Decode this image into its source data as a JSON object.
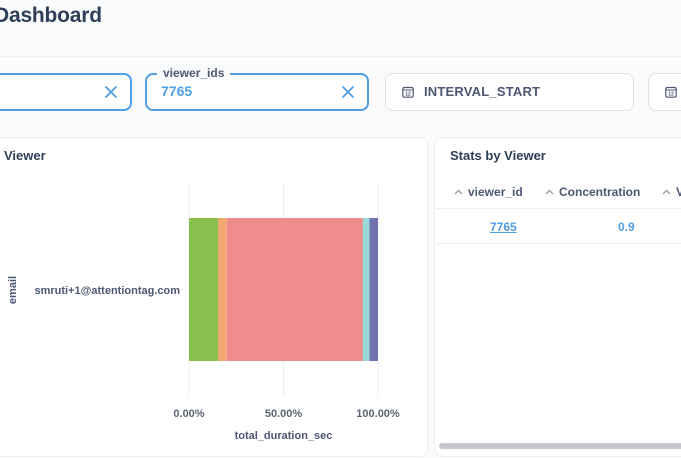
{
  "page": {
    "title": "Dashboard"
  },
  "filters": [
    {
      "id": "filter-1",
      "value": "",
      "active": true
    },
    {
      "id": "viewer_ids",
      "legend": "viewer_ids",
      "value": "7765",
      "active": true
    },
    {
      "id": "interval-start",
      "name": "INTERVAL_START",
      "active": false
    },
    {
      "id": "filter-4",
      "name": "",
      "active": false
    }
  ],
  "viewer_card": {
    "title": "Viewer",
    "chart_data": {
      "type": "bar",
      "orientation": "horizontal",
      "stacked": "normalized",
      "categories": [
        "smruti+1@attentiontag.com"
      ],
      "series": [
        {
          "values": [
            0.155
          ],
          "color": "#88bf4d"
        },
        {
          "values": [
            0.045
          ],
          "color": "#f2a86f"
        },
        {
          "values": [
            0.72
          ],
          "color": "#ef8c8c"
        },
        {
          "values": [
            0.035
          ],
          "color": "#98d9d9"
        },
        {
          "values": [
            0.045
          ],
          "color": "#7172ad"
        }
      ],
      "xlabel": "total_duration_sec",
      "ylabel": "email",
      "xticks": [
        "0.00%",
        "50.00%",
        "100.00%"
      ],
      "xlim": [
        0,
        1
      ],
      "grid": true
    }
  },
  "stats_card": {
    "title": "Stats by Viewer",
    "columns": [
      "viewer_id",
      "Concentration",
      "V"
    ],
    "rows": [
      {
        "viewer_id": "7765",
        "concentration": "0.9",
        "v": ""
      }
    ]
  },
  "colors": {
    "accent": "#509ee3",
    "text": "#4c5773",
    "title": "#2e3f57"
  }
}
